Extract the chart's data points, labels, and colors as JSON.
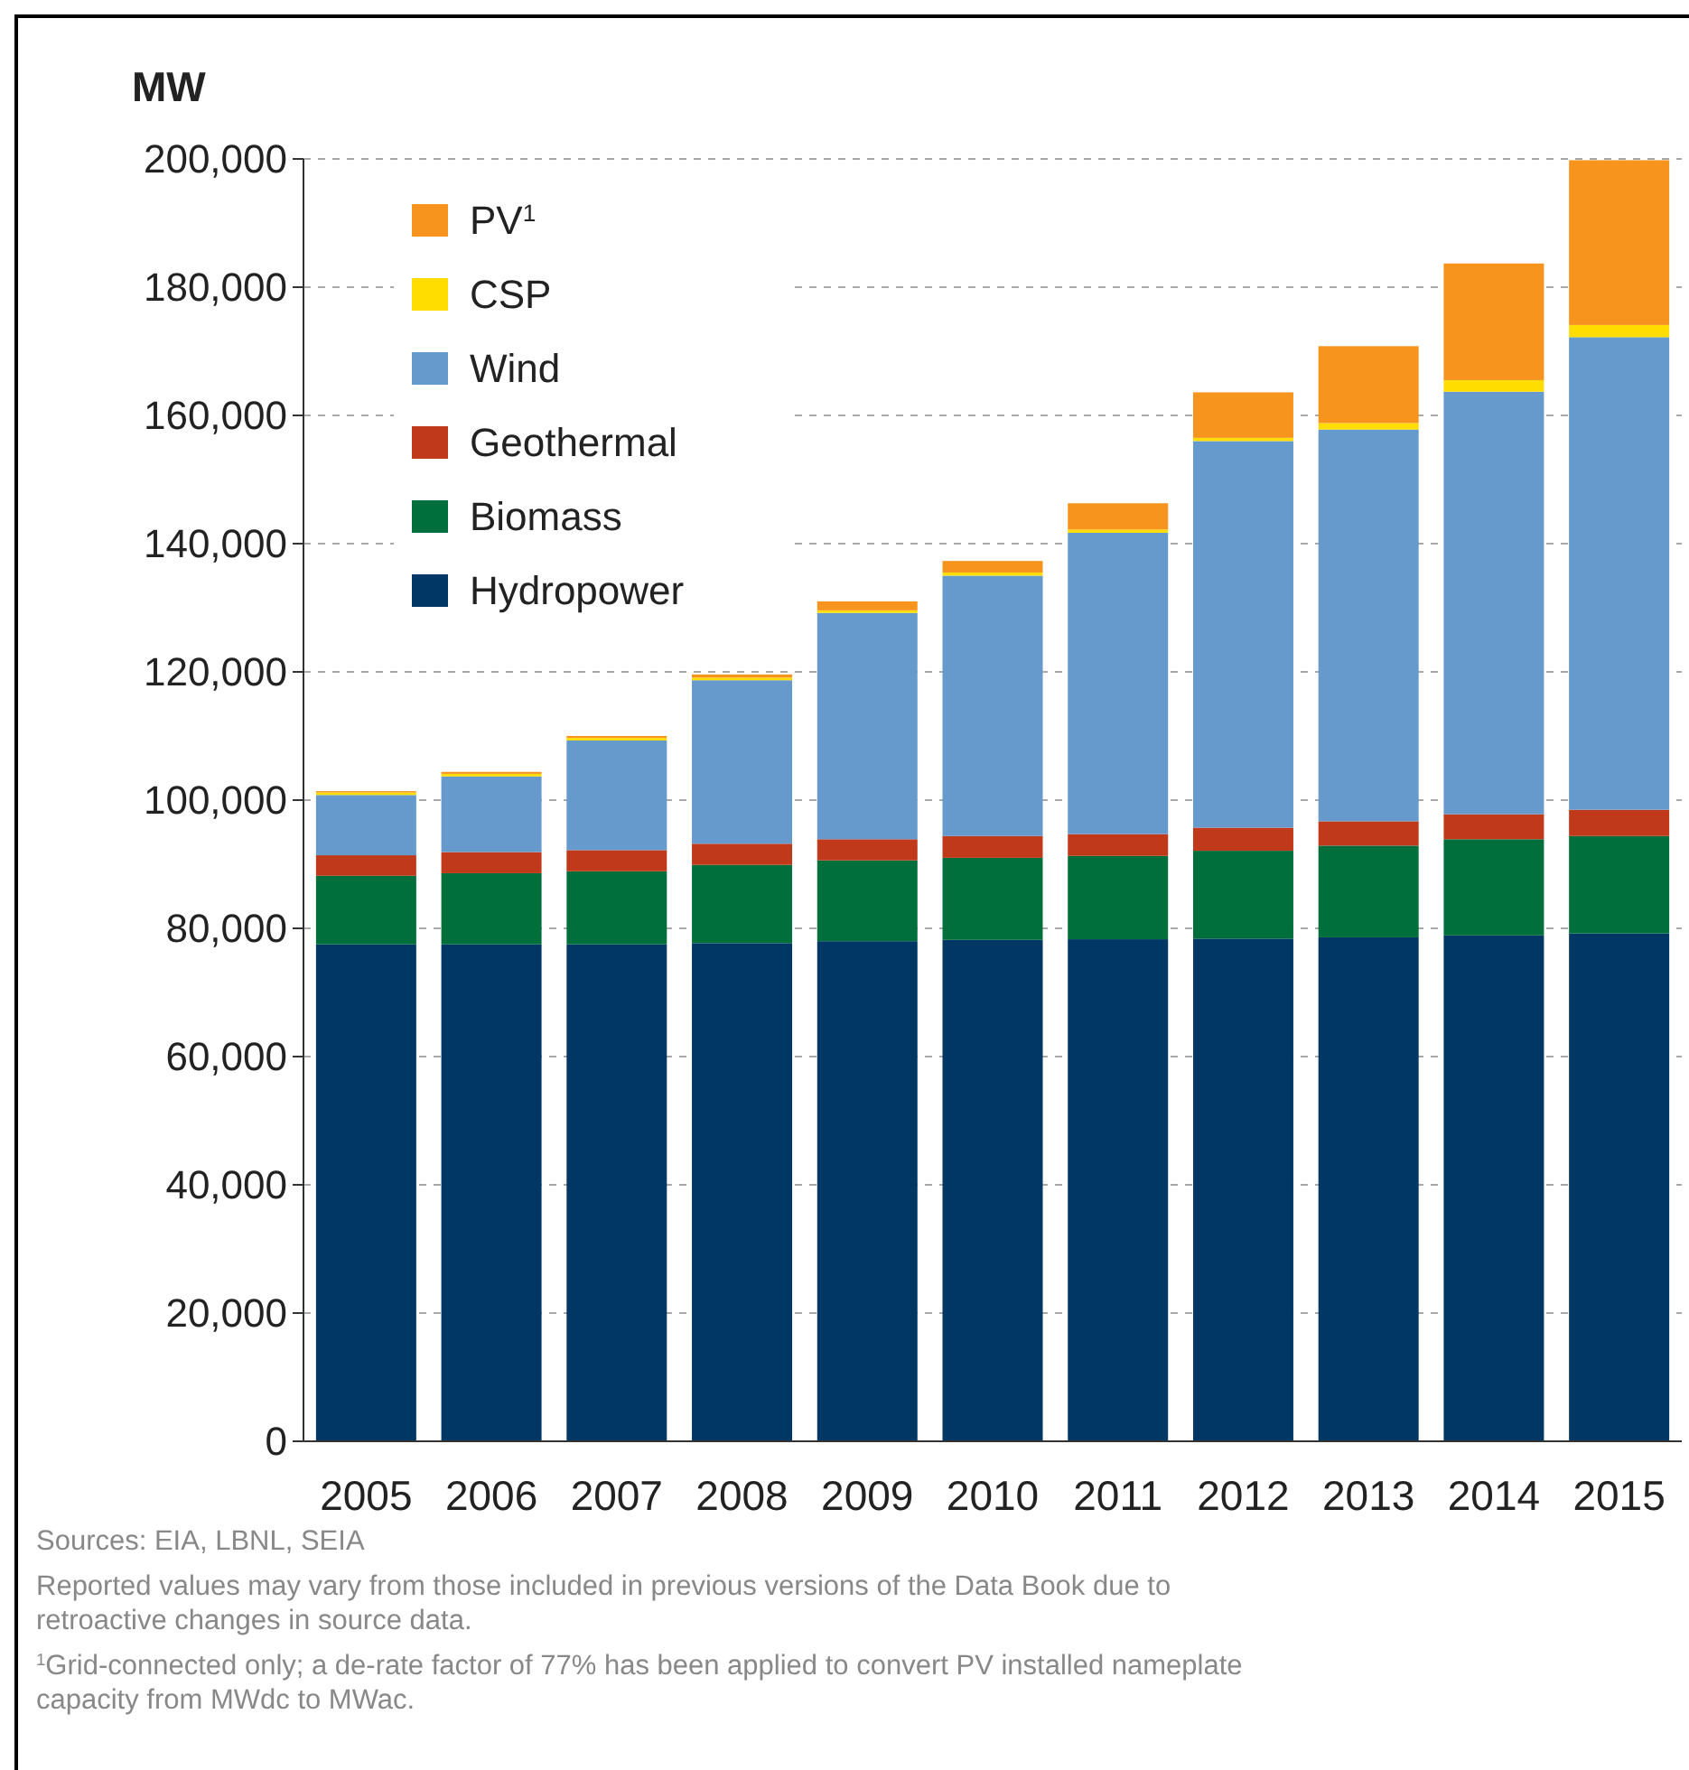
{
  "chart_data": {
    "type": "bar",
    "stacked": true,
    "ylabel": "MW",
    "categories": [
      "2005",
      "2006",
      "2007",
      "2008",
      "2009",
      "2010",
      "2011",
      "2012",
      "2013",
      "2014",
      "2015"
    ],
    "series": [
      {
        "name": "Hydropower",
        "color": "#003764",
        "values": [
          77500,
          77500,
          77500,
          77700,
          78000,
          78200,
          78300,
          78400,
          78600,
          78900,
          79200
        ]
      },
      {
        "name": "Biomass",
        "color": "#006f3c",
        "values": [
          10700,
          11100,
          11400,
          12200,
          12600,
          12800,
          13000,
          13700,
          14300,
          15000,
          15200
        ]
      },
      {
        "name": "Geothermal",
        "color": "#c0391b",
        "values": [
          3200,
          3300,
          3300,
          3300,
          3300,
          3400,
          3400,
          3600,
          3800,
          3900,
          4100
        ]
      },
      {
        "name": "Wind",
        "color": "#6699cc",
        "values": [
          9400,
          11800,
          17100,
          25500,
          35300,
          40600,
          47000,
          60300,
          61100,
          65900,
          73700
        ]
      },
      {
        "name": "CSP",
        "color": "#ffdd00",
        "values": [
          400,
          400,
          400,
          400,
          400,
          500,
          500,
          500,
          1000,
          1800,
          1900
        ]
      },
      {
        "name": "PV$^{1}$",
        "color": "#f7941d",
        "values": [
          200,
          300,
          300,
          500,
          1400,
          1800,
          4100,
          7100,
          12000,
          18200,
          25700
        ]
      }
    ],
    "ylim": [
      0,
      200000
    ],
    "yticks": [
      {
        "value": 0,
        "label": "0"
      },
      {
        "value": 20000,
        "label": "20,000"
      },
      {
        "value": 40000,
        "label": "40,000"
      },
      {
        "value": 60000,
        "label": "60,000"
      },
      {
        "value": 80000,
        "label": "80,000"
      },
      {
        "value": 100000,
        "label": "100,000"
      },
      {
        "value": 120000,
        "label": "120,000"
      },
      {
        "value": 140000,
        "label": "140,000"
      },
      {
        "value": 160000,
        "label": "160,000"
      },
      {
        "value": 180000,
        "label": "180,000"
      },
      {
        "value": 200000,
        "label": "200,000"
      }
    ],
    "grid": "y",
    "legend": "top left",
    "annotations": [
      "Sources: EIA, LBNL, SEIA",
      "Reported values may vary from those included in previous versions of the Data Book due to retroactive changes in source data.",
      "$^{1}$Grid-connected only; a de-rate factor of 77% has been applied to convert PV installed nameplate capacity from MWdc to MWac."
    ]
  }
}
